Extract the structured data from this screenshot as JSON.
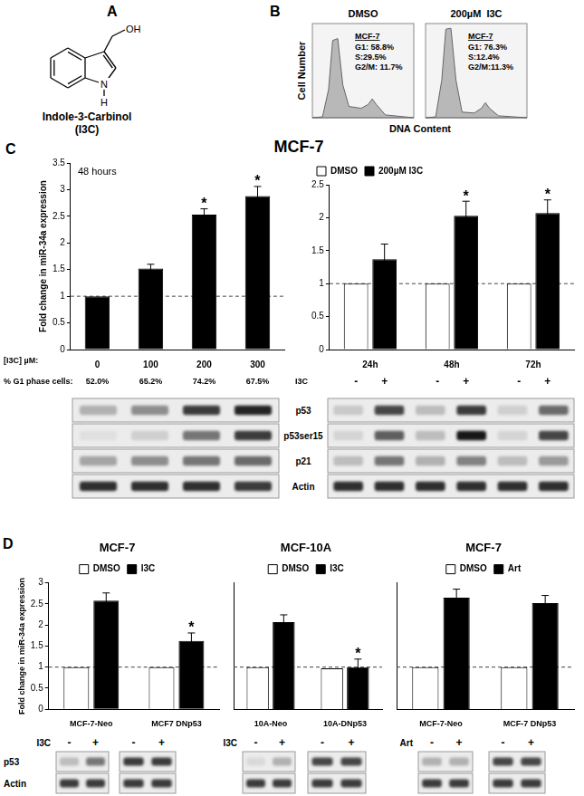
{
  "chart_data": [
    {
      "type": "bar",
      "subtitle": "48 hours",
      "y_label": "Fold change in miR-34a expression",
      "x_label": "[I3C] µM:",
      "categories": [
        "0",
        "100",
        "200",
        "300"
      ],
      "values": [
        1,
        1.52,
        2.53,
        2.88
      ],
      "errors": [
        0,
        0.08,
        0.11,
        0.18
      ],
      "color": "#000000",
      "ylim": [
        0,
        3.5
      ],
      "yticks": [
        0,
        0.5,
        1,
        1.5,
        2,
        2.5,
        3,
        3.5
      ],
      "grid": false,
      "reference_line": 1,
      "annotations": [
        {
          "text": "*",
          "category": "200"
        },
        {
          "text": "*",
          "category": "300"
        }
      ],
      "x_row": {
        "label": "% G1 phase cells:",
        "labels": [
          "52.0%",
          "65.2%",
          "74.2%",
          "67.5%"
        ]
      }
    },
    {
      "type": "bar",
      "categories": [
        "24h",
        "48h",
        "72h"
      ],
      "series": [
        {
          "name": "DMSO",
          "color": "#ffffff",
          "values": [
            1,
            1,
            1
          ]
        },
        {
          "name": "200µM I3C",
          "color": "#000000",
          "values": [
            1.37,
            2.03,
            2.07
          ],
          "errors": [
            0.23,
            0.22,
            0.2
          ]
        }
      ],
      "ylim": [
        0,
        2.5
      ],
      "yticks": [
        0,
        0.5,
        1,
        1.5,
        2,
        2.5
      ],
      "grid": false,
      "legend": "upper left",
      "reference_line": 1,
      "annotations": [
        {
          "text": "*",
          "category": "48h",
          "series": "200µM I3C"
        },
        {
          "text": "*",
          "category": "72h",
          "series": "200µM I3C"
        }
      ],
      "x_row": {
        "label": "I3C",
        "labels": [
          "-",
          "+",
          "-",
          "+",
          "-",
          "+"
        ]
      }
    },
    {
      "type": "bar",
      "title": "MCF-7",
      "y_label": "Fold change in miR-34a expression",
      "categories": [
        "MCF-7-Neo",
        "MCF7 DNp53"
      ],
      "series": [
        {
          "name": "DMSO",
          "color": "#ffffff",
          "values": [
            1,
            1
          ]
        },
        {
          "name": "I3C",
          "color": "#000000",
          "values": [
            2.58,
            1.62
          ],
          "errors": [
            0.18,
            0.19
          ]
        }
      ],
      "ylim": [
        0,
        3
      ],
      "yticks": [
        0,
        0.5,
        1,
        1.5,
        2,
        2.5,
        3
      ],
      "grid": false,
      "legend": "top",
      "reference_line": 1,
      "annotations": [
        {
          "text": "*",
          "category": "MCF7 DNp53",
          "series": "I3C"
        }
      ]
    },
    {
      "type": "bar",
      "title": "MCF-10A",
      "categories": [
        "10A-Neo",
        "10A-DNp53"
      ],
      "series": [
        {
          "name": "DMSO",
          "color": "#ffffff",
          "values": [
            1,
            0.97
          ]
        },
        {
          "name": "I3C",
          "color": "#000000",
          "values": [
            2.07,
            1.0
          ],
          "errors": [
            0.17,
            0.19
          ]
        }
      ],
      "ylim": [
        0,
        3
      ],
      "tick_labels": "x",
      "grid": false,
      "legend": "top",
      "reference_line": 1,
      "annotations": [
        {
          "text": "*",
          "category": "10A-DNp53",
          "series": "I3C"
        }
      ]
    },
    {
      "type": "bar",
      "title": "MCF-7",
      "categories": [
        "MCF-7-Neo",
        "MCF-7 DNp53"
      ],
      "series": [
        {
          "name": "DMSO",
          "color": "#ffffff",
          "values": [
            1,
            1
          ]
        },
        {
          "name": "Art",
          "color": "#000000",
          "values": [
            2.65,
            2.52
          ],
          "errors": [
            0.2,
            0.18
          ]
        }
      ],
      "ylim": [
        0,
        3
      ],
      "tick_labels": "x",
      "grid": false,
      "legend": "top",
      "reference_line": 1
    }
  ],
  "panels": {
    "A": {
      "label": "A",
      "name": "Indole-3-Carbinol",
      "abbreviation": "(I3C)",
      "atoms": {
        "hydroxyl": "OH",
        "nitrogen": "N",
        "hydrogen": "H"
      }
    },
    "B": {
      "label": "B",
      "y_label": "Cell Number",
      "x_label": "DNA Content",
      "histograms": [
        {
          "title": "DMSO",
          "cell_line": "MCF-7",
          "phases": [
            "G1: 58.8%",
            "S:29.5%",
            "G2/M: 11.7%"
          ]
        },
        {
          "title": "200µM  I3C",
          "cell_line": "MCF-7",
          "phases": [
            "G1: 76.3%",
            "S:12.4%",
            "G2/M:11.3%"
          ]
        }
      ]
    },
    "C": {
      "label": "C",
      "title": "MCF-7",
      "blot_rows": [
        "p53",
        "p53ser15",
        "p21",
        "Actin"
      ]
    },
    "D": {
      "label": "D",
      "blot_rows": [
        "p53",
        "Actin"
      ],
      "blot_groups": [
        {
          "treatment": "I3C",
          "lanes": [
            "-",
            "+"
          ]
        },
        {
          "lanes": [
            "-",
            "+"
          ]
        },
        {
          "treatment": "I3C",
          "lanes": [
            "-",
            "+"
          ]
        },
        {
          "lanes": [
            "-",
            "+"
          ]
        },
        {
          "treatment": "Art",
          "lanes": [
            "-",
            "+"
          ]
        },
        {
          "lanes": [
            "-",
            "+"
          ]
        }
      ]
    }
  }
}
